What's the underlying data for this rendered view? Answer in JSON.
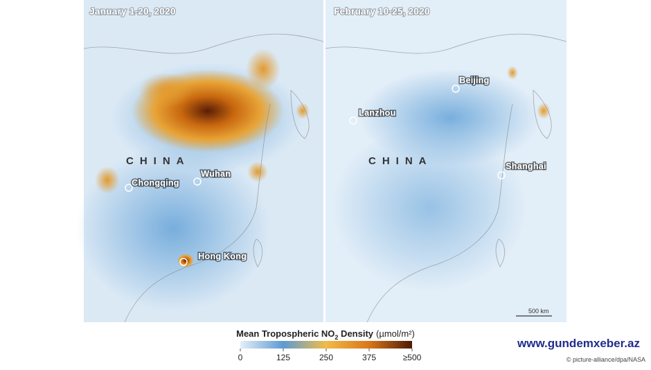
{
  "panels": [
    {
      "title": "January 1-20, 2020",
      "country": "CHINA",
      "cities": [
        "Chongqing",
        "Wuhan",
        "Hong Kong"
      ]
    },
    {
      "title": "February 10-25, 2020",
      "country": "CHINA",
      "cities": [
        "Beijing",
        "Lanzhou",
        "Shanghai"
      ],
      "scale": "500 km"
    }
  ],
  "legend": {
    "title": "Mean Tropospheric NO",
    "subscript": "2",
    "title_end": " Density",
    "unit": "(µmol/m²)",
    "range": [
      0,
      500
    ],
    "ticks": [
      0,
      125,
      250,
      375,
      {
        "value": 500,
        "label": "≥500"
      }
    ]
  },
  "watermark": "www.gundemxeber.az",
  "credit": "© picture-alliance/dpa/NASA"
}
